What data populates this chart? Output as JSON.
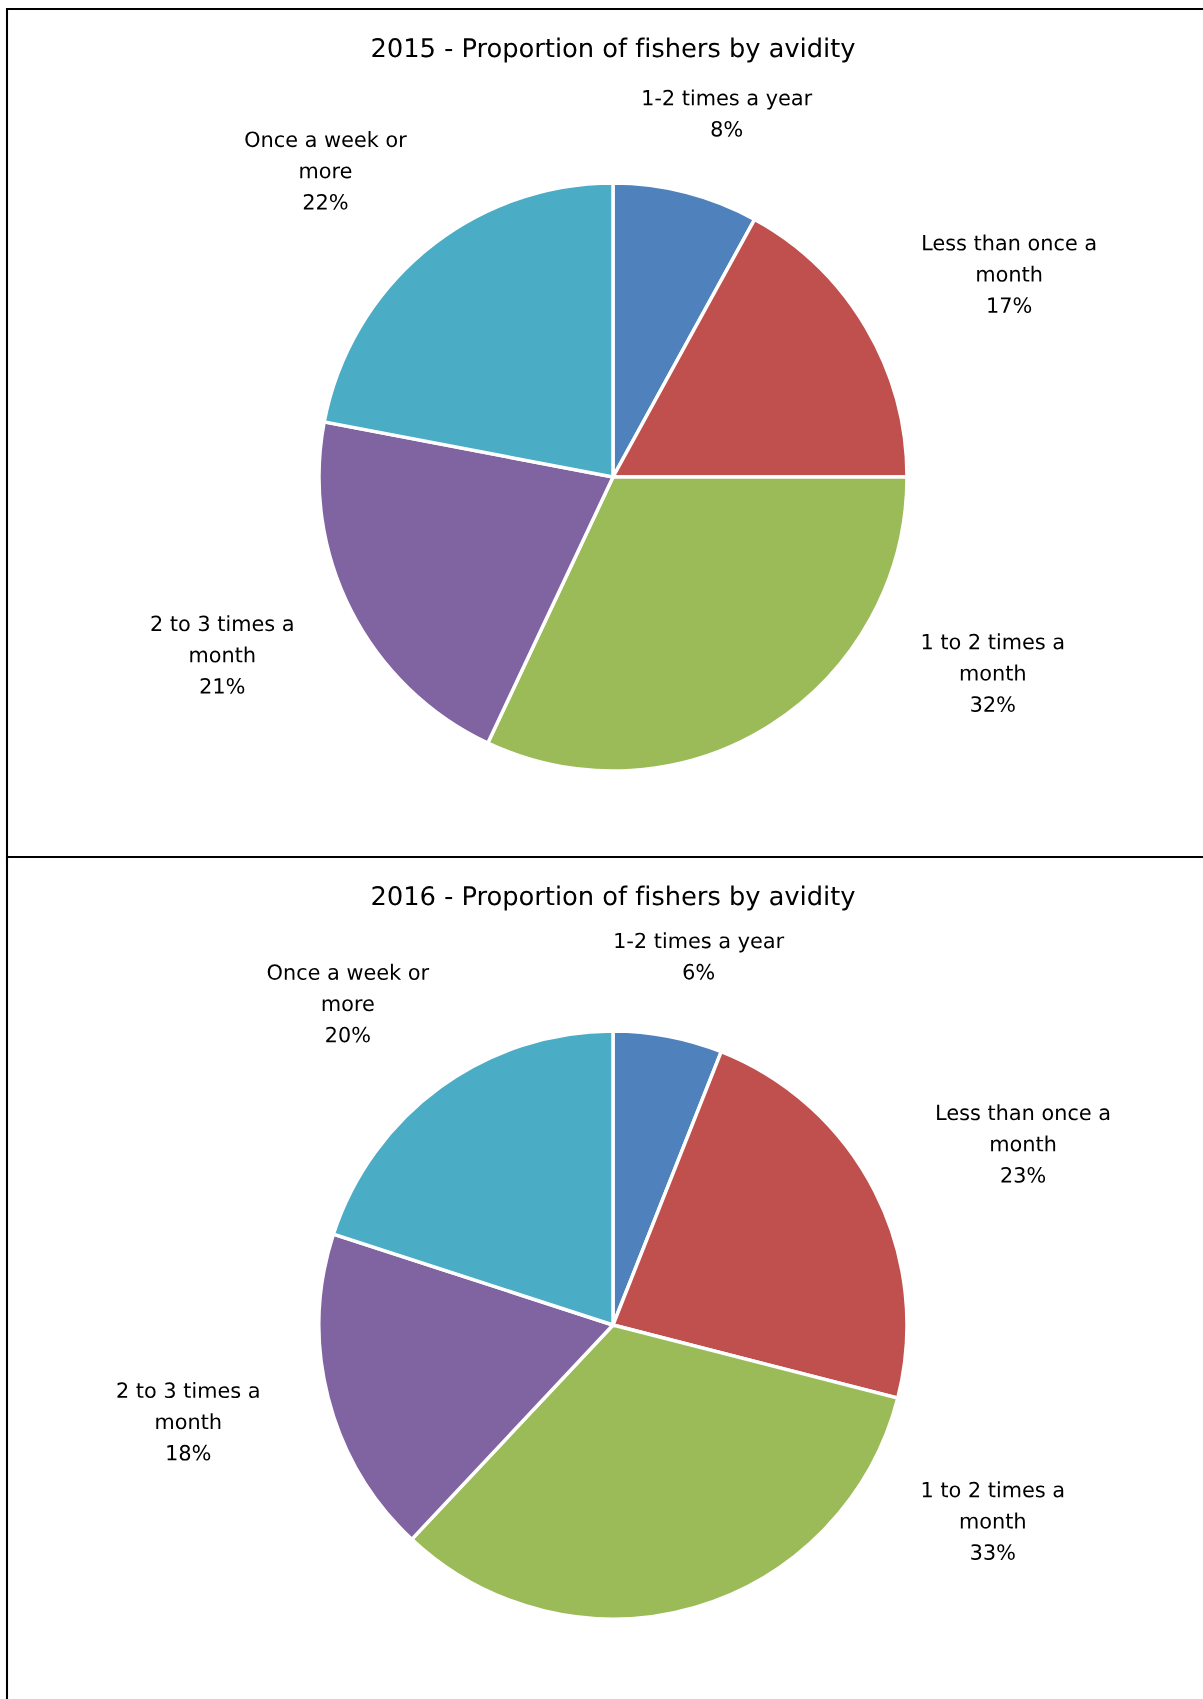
{
  "chart_data": [
    {
      "type": "pie",
      "title": "2015 - Proportion of fishers by avidity",
      "categories": [
        "1-2 times a year",
        "Less than once a\nmonth",
        "1 to 2 times a\nmonth",
        "2 to 3 times a\nmonth",
        "Once a week or\nmore"
      ],
      "values": [
        8,
        17,
        32,
        21,
        22
      ],
      "value_labels": [
        "8%",
        "17%",
        "32%",
        "21%",
        "22%"
      ],
      "colors": [
        "#4f81bd",
        "#c0504d",
        "#9bbb59",
        "#8064a2",
        "#4bacc6"
      ]
    },
    {
      "type": "pie",
      "title": "2016 - Proportion of fishers by avidity",
      "categories": [
        "1-2 times a year",
        "Less than once a\nmonth",
        "1 to 2 times a\nmonth",
        "2 to 3 times a\nmonth",
        "Once a week or\nmore"
      ],
      "values": [
        6,
        23,
        33,
        18,
        20
      ],
      "value_labels": [
        "6%",
        "23%",
        "33%",
        "18%",
        "20%"
      ],
      "colors": [
        "#4f81bd",
        "#c0504d",
        "#9bbb59",
        "#8064a2",
        "#4bacc6"
      ]
    }
  ]
}
